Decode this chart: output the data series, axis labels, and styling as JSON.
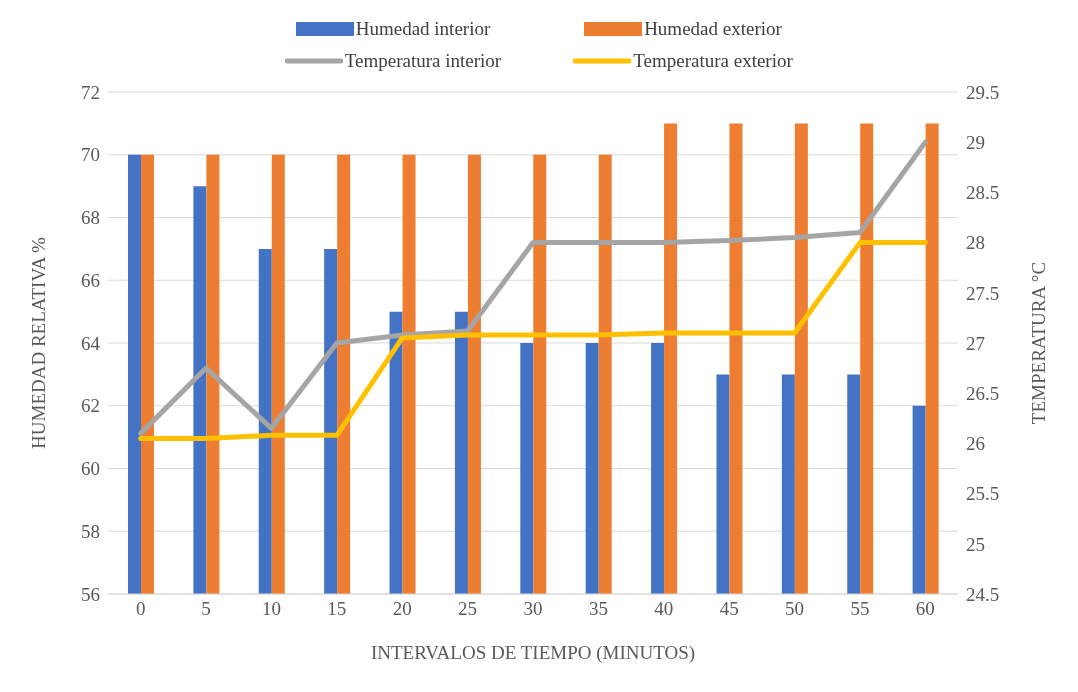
{
  "chart_data": {
    "type": "bar",
    "xlabel": "INTERVALOS DE TIEMPO (MINUTOS)",
    "ylabel": "HUMEDAD RELATIVA %",
    "y2label": "TEMPERATURA °C",
    "categories": [
      "0",
      "5",
      "10",
      "15",
      "20",
      "25",
      "30",
      "35",
      "40",
      "45",
      "50",
      "55",
      "60"
    ],
    "series": [
      {
        "name": "Humedad interior",
        "color": "#4472c4",
        "values": [
          70,
          69,
          67,
          67,
          65,
          65,
          64,
          64,
          64,
          63,
          63,
          63,
          62
        ]
      },
      {
        "name": "Humedad exterior",
        "color": "#ed7d31",
        "values": [
          70,
          70,
          70,
          70,
          70,
          70,
          70,
          70,
          71,
          71,
          71,
          71,
          71
        ]
      },
      {
        "name": "Temperatura interior",
        "type": "line",
        "axis": "y2",
        "color": "#a5a5a5",
        "values": [
          26.1,
          26.75,
          26.15,
          27.0,
          27.08,
          27.12,
          28.0,
          28.0,
          28.0,
          28.02,
          28.05,
          28.1,
          29.0
        ]
      },
      {
        "name": "Temperatura exterior",
        "type": "line",
        "axis": "y2",
        "color": "#ffc000",
        "values": [
          26.05,
          26.05,
          26.08,
          26.08,
          27.05,
          27.08,
          27.08,
          27.08,
          27.1,
          27.1,
          27.1,
          28.0,
          28.0
        ]
      }
    ],
    "ylim": [
      56,
      72
    ],
    "yticks": [
      56,
      58,
      60,
      62,
      64,
      66,
      68,
      70,
      72
    ],
    "y2lim": [
      24.5,
      29.5
    ],
    "y2ticks": [
      24.5,
      25,
      25.5,
      26,
      26.5,
      27,
      27.5,
      28,
      28.5,
      29,
      29.5
    ],
    "grid": "y",
    "legend": "top",
    "marker": "none",
    "line_style": "solid"
  }
}
